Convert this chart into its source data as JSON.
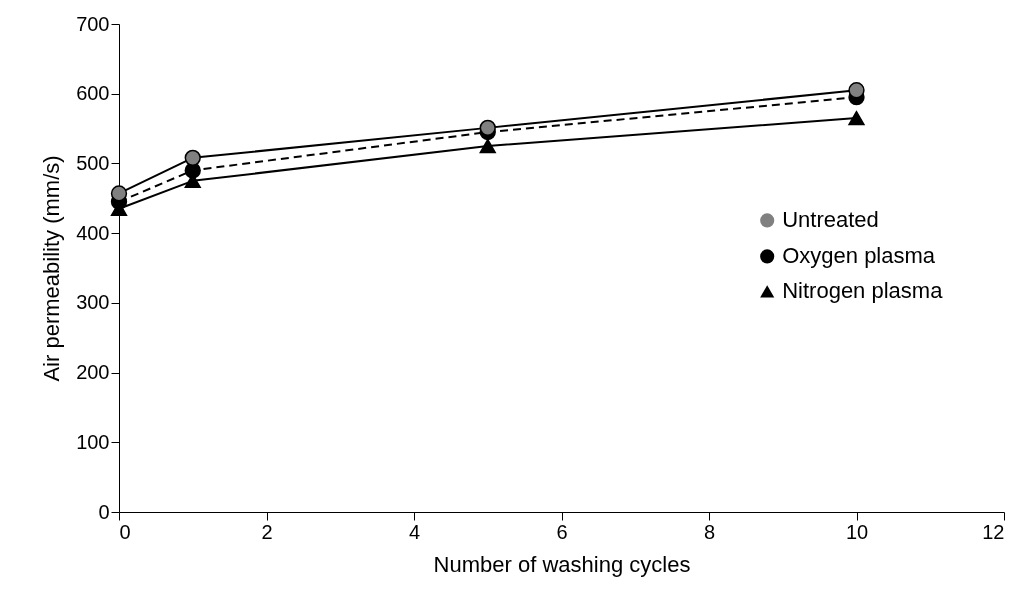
{
  "chart_data": {
    "type": "line",
    "xlabel": "Number  of washing cycles",
    "ylabel": "Air permeability (mm/s)",
    "x": [
      0,
      1,
      5,
      10
    ],
    "series": [
      {
        "name": "Untreated",
        "color": "#808080",
        "marker": "circle",
        "line_style": "solid",
        "values": [
          457,
          508,
          551,
          605
        ]
      },
      {
        "name": "Oxygen plasma",
        "color": "#000000",
        "marker": "circle",
        "line_style": "dashed",
        "values": [
          445,
          490,
          545,
          595
        ]
      },
      {
        "name": "Nitrogen plasma",
        "color": "#000000",
        "marker": "triangle",
        "line_style": "solid",
        "values": [
          435,
          475,
          525,
          565
        ]
      }
    ],
    "xlim": [
      0,
      12
    ],
    "xticks": [
      0,
      2,
      4,
      6,
      8,
      10,
      12
    ],
    "ylim": [
      0,
      700
    ],
    "yticks": [
      0,
      100,
      200,
      300,
      400,
      500,
      600,
      700
    ],
    "grid": false,
    "legend": "right"
  }
}
